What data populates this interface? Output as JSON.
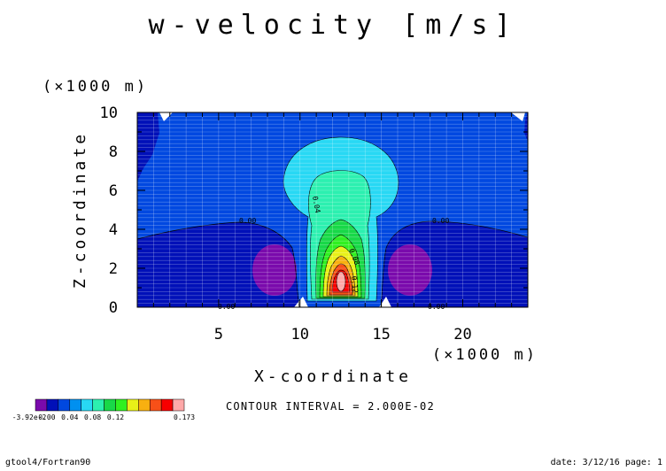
{
  "chart_data": {
    "type": "contour",
    "title": "w-velocity [m/s]",
    "xlabel": "X-coordinate",
    "ylabel": "Z-coordinate",
    "x_unit": "(×1000 m)",
    "y_unit": "(×1000 m)",
    "xlim": [
      0,
      24
    ],
    "ylim": [
      0,
      10
    ],
    "x_ticks": [
      "5",
      "10",
      "15",
      "20"
    ],
    "y_ticks": [
      "0",
      "2",
      "4",
      "6",
      "8",
      "10"
    ],
    "grid": true,
    "contour_interval_text": "CONTOUR INTERVAL = 2.000E-02",
    "contour_labels": [
      "0.00",
      "0.04",
      "0.08",
      "0.12",
      "0.00",
      "0.00",
      "0.00"
    ],
    "colorbar": {
      "colors": [
        "#7a0aac",
        "#0010b8",
        "#0048e0",
        "#0090f0",
        "#28d8f4",
        "#2cf0b0",
        "#18d848",
        "#30f020",
        "#e8f018",
        "#f8b010",
        "#f85018",
        "#f80000",
        "#ffa8a8"
      ],
      "tick_labels": [
        "-3.92e-2",
        "0.00",
        "0.04",
        "0.08",
        "0.12",
        "0.173"
      ]
    },
    "features": [
      {
        "name": "updraft core maximum",
        "x": 12.5,
        "z": 1.5,
        "value": 0.173
      },
      {
        "name": "left downdraft minimum",
        "x": 8.2,
        "z": 1.9,
        "value": -0.0392
      },
      {
        "name": "right downdraft minimum",
        "x": 16.8,
        "z": 1.9,
        "value": -0.0392
      }
    ]
  },
  "footer": {
    "left": "gtool4/Fortran90",
    "right": "date: 3/12/16 page: 1"
  }
}
